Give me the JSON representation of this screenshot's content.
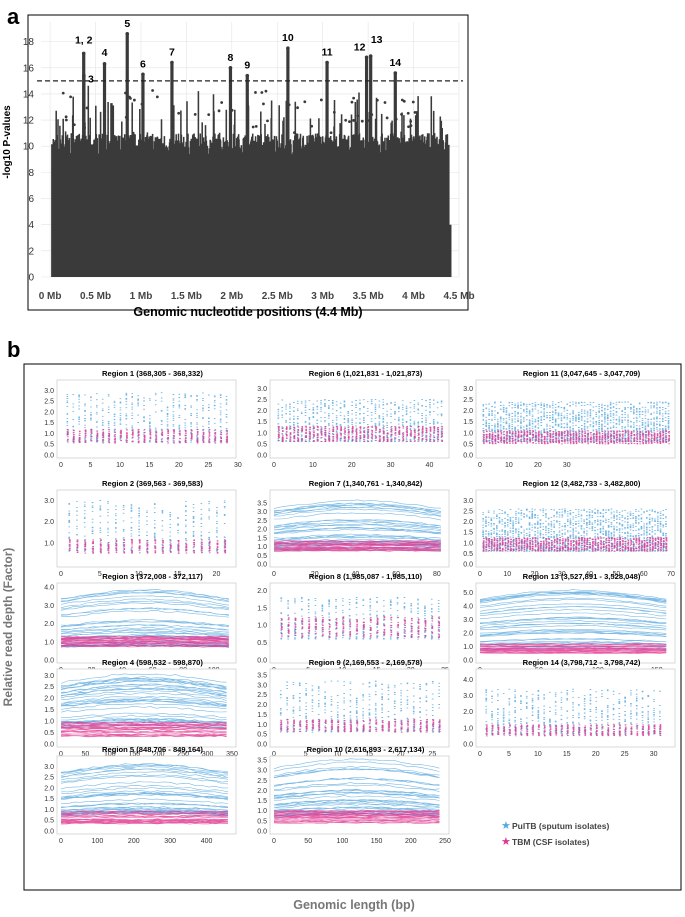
{
  "panel_a_label": "a",
  "panel_b_label": "b",
  "colors": {
    "manhattan": "#3a3a3a",
    "pultb": "#5aa9de",
    "tbm": "#e0358f",
    "grid": "#e3e3e3",
    "threshold": "#222222"
  },
  "chart_data": [
    {
      "type": "scatter",
      "subtype": "manhattan",
      "xlabel": "Genomic nucleotide positions (4.4 Mb)",
      "ylabel": "-log10 P-values",
      "xlim": [
        -0.1,
        4.5
      ],
      "ylim": [
        0,
        19.5
      ],
      "x_ticks": [
        0,
        0.5,
        1,
        1.5,
        2,
        2.5,
        3,
        3.5,
        4,
        4.5
      ],
      "x_tick_labels": [
        "0 Mb",
        "0.5 Mb",
        "1 Mb",
        "1.5 Mb",
        "2 Mb",
        "2.5 Mb",
        "3 Mb",
        "3.5 Mb",
        "4 Mb",
        "4.5 Mb"
      ],
      "y_ticks": [
        0,
        2,
        4,
        6,
        8,
        10,
        12,
        14,
        16,
        18
      ],
      "threshold": 15,
      "peaks": [
        {
          "label": "1, 2",
          "x": 0.37,
          "y": 17.1
        },
        {
          "label": "3",
          "x": 0.372,
          "y": 15.4
        },
        {
          "label": "4",
          "x": 0.599,
          "y": 16.3
        },
        {
          "label": "5",
          "x": 0.849,
          "y": 18.6
        },
        {
          "label": "6",
          "x": 1.022,
          "y": 15.5
        },
        {
          "label": "7",
          "x": 1.341,
          "y": 16.4
        },
        {
          "label": "8",
          "x": 1.985,
          "y": 16.0
        },
        {
          "label": "9",
          "x": 2.17,
          "y": 15.4
        },
        {
          "label": "10",
          "x": 2.617,
          "y": 17.5
        },
        {
          "label": "11",
          "x": 3.048,
          "y": 16.4
        },
        {
          "label": "12",
          "x": 3.483,
          "y": 16.8
        },
        {
          "label": "13",
          "x": 3.528,
          "y": 16.9
        },
        {
          "label": "14",
          "x": 3.799,
          "y": 15.6
        }
      ]
    },
    {
      "type": "line",
      "ylabel": "Relative read depth (Factor)",
      "xlabel": "Genomic length (bp)",
      "legend": [
        {
          "label": "PulTB (sputum isolates)",
          "color": "#5aa9de"
        },
        {
          "label": "TBM (CSF isolates)",
          "color": "#e0358f"
        }
      ],
      "series": [
        "PulTB (sputum isolates)",
        "TBM (CSF isolates)"
      ],
      "regions": [
        {
          "title": "Region 1 (368,305 - 368,332)",
          "xlim": [
            0,
            29
          ],
          "x_ticks": [
            0,
            5,
            10,
            15,
            20,
            25,
            30
          ],
          "ylim": [
            0,
            3.3
          ],
          "y_ticks": [
            "0.0",
            "0.5",
            "1.0",
            "1.5",
            "2.0",
            "2.5",
            "3.0"
          ],
          "length": 28,
          "style": "dots",
          "pultb_max": 2.9,
          "tbm_band": [
            0.55,
            1.2
          ]
        },
        {
          "title": "Region 6 (1,021,831 - 1,021,873)",
          "xlim": [
            0,
            44
          ],
          "x_ticks": [
            0,
            10,
            20,
            30,
            40
          ],
          "ylim": [
            0,
            3.2
          ],
          "y_ticks": [
            "0.0",
            "0.5",
            "1.0",
            "1.5",
            "2.0",
            "2.5",
            "3.0"
          ],
          "length": 43,
          "style": "dots",
          "pultb_max": 2.5,
          "tbm_band": [
            0.6,
            1.3
          ]
        },
        {
          "title": "Region 11 (3,047,645 - 3,047,709)",
          "xlim": [
            0,
            66
          ],
          "x_ticks": [
            0,
            10,
            20,
            30
          ],
          "ylim": [
            0,
            3.2
          ],
          "y_ticks": [
            "0.0",
            "0.5",
            "1.0",
            "1.5",
            "2.0",
            "2.5",
            "3.0"
          ],
          "length": 65,
          "style": "dense",
          "pultb_max": 2.4,
          "tbm_band": [
            0.5,
            1.1
          ]
        },
        {
          "title": "Region 2 (369,563 - 369,583)",
          "xlim": [
            0,
            22
          ],
          "x_ticks": [
            0,
            5,
            10,
            15,
            20
          ],
          "ylim": [
            0,
            3.3
          ],
          "y_ticks": [
            "1.0",
            "2.0",
            "3.0"
          ],
          "length": 21,
          "style": "dots",
          "pultb_max": 3.0,
          "tbm_band": [
            0.5,
            1.15
          ]
        },
        {
          "title": "Region 7 (1,340,761 - 1,340,842)",
          "xlim": [
            0,
            84
          ],
          "x_ticks": [
            0,
            20,
            40,
            60,
            80
          ],
          "ylim": [
            0,
            4.0
          ],
          "y_ticks": [
            "0.0",
            "0.5",
            "1.0",
            "1.5",
            "2.0",
            "2.5",
            "3.0",
            "3.5"
          ],
          "length": 82,
          "style": "lines",
          "pultb_max": 3.3,
          "tbm_band": [
            0.75,
            1.35
          ]
        },
        {
          "title": "Region 12 (3,482,733 - 3,482,800)",
          "xlim": [
            0,
            70
          ],
          "x_ticks": [
            0,
            10,
            20,
            30,
            40,
            50,
            60,
            70
          ],
          "ylim": [
            0,
            3.3
          ],
          "y_ticks": [
            "0.0",
            "0.5",
            "1.0",
            "1.5",
            "2.0",
            "2.5",
            "3.0"
          ],
          "length": 68,
          "style": "dense",
          "pultb_max": 2.6,
          "tbm_band": [
            0.6,
            1.25
          ]
        },
        {
          "title": "Region 3 (372,008 - 372,117)",
          "xlim": [
            0,
            112
          ],
          "x_ticks": [
            0,
            20,
            40,
            60,
            80,
            100
          ],
          "ylim": [
            0,
            4.0
          ],
          "y_ticks": [
            "0.0",
            "1.0",
            "2.0",
            "3.0",
            "4.0"
          ],
          "length": 110,
          "style": "lines",
          "pultb_max": 3.6,
          "tbm_band": [
            0.7,
            1.3
          ]
        },
        {
          "title": "Region 8 (1,985,087 - 1,985,110)",
          "xlim": [
            0,
            25
          ],
          "x_ticks": [
            0,
            5,
            10,
            15,
            20,
            25
          ],
          "ylim": [
            0,
            2.1
          ],
          "y_ticks": [
            "0.0",
            "0.5",
            "1.0",
            "1.5",
            "2.0"
          ],
          "length": 24,
          "style": "dots",
          "pultb_max": 1.8,
          "tbm_band": [
            0.65,
            1.25
          ]
        },
        {
          "title": "Region 13 (3,527,891 - 3,528,048)",
          "xlim": [
            0,
            162
          ],
          "x_ticks": [
            0,
            50,
            100,
            150
          ],
          "ylim": [
            0,
            5.4
          ],
          "y_ticks": [
            "0.0",
            "1.0",
            "2.0",
            "3.0",
            "4.0",
            "5.0"
          ],
          "length": 158,
          "style": "lines",
          "pultb_max": 4.6,
          "tbm_band": [
            0.5,
            1.2
          ]
        },
        {
          "title": "Region 4 (598,532 - 598,870)",
          "xlim": [
            0,
            350
          ],
          "x_ticks": [
            0,
            50,
            100,
            150,
            200,
            250,
            300,
            350
          ],
          "ylim": [
            0,
            3.1
          ],
          "y_ticks": [
            "0.0",
            "0.5",
            "1.0",
            "1.5",
            "2.0",
            "2.5",
            "3.0"
          ],
          "length": 339,
          "style": "lines",
          "pultb_max": 2.9,
          "tbm_band": [
            0.3,
            1.0
          ]
        },
        {
          "title": "Region 9 (2,169,553 - 2,169,578)",
          "xlim": [
            0,
            27
          ],
          "x_ticks": [
            0,
            5,
            10,
            15,
            20,
            25
          ],
          "ylim": [
            0,
            3.6
          ],
          "y_ticks": [
            "0.0",
            "0.5",
            "1.0",
            "1.5",
            "2.0",
            "2.5",
            "3.0",
            "3.5"
          ],
          "length": 26,
          "style": "dots",
          "pultb_max": 3.2,
          "tbm_band": [
            0.6,
            1.25
          ]
        },
        {
          "title": "Region 14 (3,798,712 - 3,798,742)",
          "xlim": [
            0,
            33
          ],
          "x_ticks": [
            0,
            5,
            10,
            15,
            20,
            25,
            30
          ],
          "ylim": [
            0,
            4.4
          ],
          "y_ticks": [
            "0.0",
            "1.0",
            "2.0",
            "3.0",
            "4.0"
          ],
          "length": 31,
          "style": "dots",
          "pultb_max": 3.4,
          "tbm_band": [
            0.5,
            1.2
          ]
        },
        {
          "title": "Region 5 (848,706 - 849,164)",
          "xlim": [
            0,
            470
          ],
          "x_ticks": [
            0,
            100,
            200,
            300,
            400
          ],
          "ylim": [
            0,
            3.3
          ],
          "y_ticks": [
            "0.0",
            "0.5",
            "1.0",
            "1.5",
            "2.0",
            "2.5",
            "3.0"
          ],
          "length": 459,
          "style": "lines",
          "pultb_max": 3.0,
          "tbm_band": [
            0.3,
            0.95
          ]
        },
        {
          "title": "Region 10 (2,616,893 - 2,617,134)",
          "xlim": [
            0,
            250
          ],
          "x_ticks": [
            0,
            50,
            100,
            150,
            200,
            250
          ],
          "ylim": [
            0,
            3.5
          ],
          "y_ticks": [
            "0.0",
            "0.5",
            "1.0",
            "1.5",
            "2.0",
            "2.5",
            "3.0",
            "3.5"
          ],
          "length": 242,
          "style": "lines",
          "pultb_max": 3.2,
          "tbm_band": [
            0.35,
            1.0
          ]
        }
      ]
    }
  ]
}
